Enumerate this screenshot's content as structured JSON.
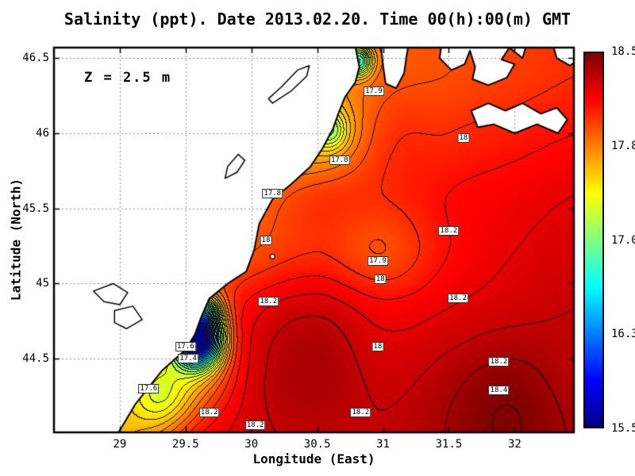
{
  "title": "Salinity (ppt). Date 2013.02.20. Time 00(h):00(m) GMT",
  "annotation": "Z = 2.5 m",
  "axes": {
    "x": {
      "label": "Longitude (East)",
      "range": [
        28.5,
        32.45
      ],
      "ticks": [
        {
          "v": 29,
          "label": "29"
        },
        {
          "v": 29.5,
          "label": "29.5"
        },
        {
          "v": 30,
          "label": "30"
        },
        {
          "v": 30.5,
          "label": "30.5"
        },
        {
          "v": 31,
          "label": "31"
        },
        {
          "v": 31.5,
          "label": "31.5"
        },
        {
          "v": 32,
          "label": "32"
        }
      ]
    },
    "y": {
      "label": "Latitude (North)",
      "range": [
        44.01,
        46.57
      ],
      "ticks": [
        {
          "v": 44.5,
          "label": "44.5"
        },
        {
          "v": 45,
          "label": "45"
        },
        {
          "v": 45.5,
          "label": "45.5"
        },
        {
          "v": 46,
          "label": "46"
        },
        {
          "v": 46.5,
          "label": "46.5"
        }
      ]
    }
  },
  "colorbar": {
    "min": 15.5,
    "max": 18.5,
    "tick_labels": [
      "18.5",
      "17.8",
      "17.0",
      "16.3",
      "15.5"
    ],
    "stops": [
      {
        "t": 0,
        "color": "#000083"
      },
      {
        "t": 0.125,
        "color": "#0000ff"
      },
      {
        "t": 0.375,
        "color": "#00ffff"
      },
      {
        "t": 0.625,
        "color": "#ffff00"
      },
      {
        "t": 0.875,
        "color": "#ff0000"
      },
      {
        "t": 1,
        "color": "#800000"
      }
    ]
  },
  "chart_data": {
    "type": "heatmap",
    "variable": "Salinity",
    "units": "ppt",
    "date": "2013.02.20",
    "time": "00(h):00(m) GMT",
    "depth": "Z = 2.5 m",
    "value_range": [
      15.5,
      18.5
    ],
    "contour_interval": 0.1,
    "grid": {
      "lon": [
        28.5,
        29.0,
        29.5,
        30.0,
        30.5,
        31.0,
        31.5,
        32.0,
        32.5
      ],
      "lat": [
        44.0,
        44.4,
        44.8,
        45.2,
        45.6,
        46.0,
        46.4,
        46.8
      ],
      "values": [
        [
          null,
          17.6,
          18.05,
          18.25,
          18.3,
          18.3,
          18.35,
          18.4,
          18.35
        ],
        [
          null,
          null,
          17.6,
          18.2,
          18.3,
          18.25,
          18.3,
          18.35,
          18.3
        ],
        [
          null,
          null,
          null,
          18.15,
          18.25,
          18.15,
          18.2,
          18.25,
          18.3
        ],
        [
          null,
          null,
          null,
          17.9,
          18.0,
          17.9,
          18.1,
          18.2,
          18.25
        ],
        [
          null,
          null,
          null,
          17.8,
          17.95,
          18.0,
          18.1,
          18.15,
          18.2
        ],
        [
          null,
          null,
          null,
          null,
          17.5,
          17.95,
          18.0,
          18.05,
          18.1
        ],
        [
          null,
          null,
          null,
          null,
          null,
          17.85,
          17.9,
          17.95,
          18.0
        ],
        [
          null,
          null,
          null,
          null,
          null,
          17.85,
          17.9,
          17.95,
          18.0
        ]
      ]
    },
    "anomalies": [
      {
        "lon": 29.6,
        "lat": 44.62,
        "amp": -2.3,
        "r": 0.12
      },
      {
        "lon": 29.66,
        "lat": 44.8,
        "amp": -0.8,
        "r": 0.09
      },
      {
        "lon": 29.32,
        "lat": 44.22,
        "amp": -0.4,
        "r": 0.16
      },
      {
        "lon": 30.6,
        "lat": 46.02,
        "amp": -0.5,
        "r": 0.09
      },
      {
        "lon": 30.82,
        "lat": 46.48,
        "amp": -1.0,
        "r": 0.07
      },
      {
        "lon": 31.9,
        "lat": 44.15,
        "amp": 0.12,
        "r": 0.35
      },
      {
        "lon": 30.45,
        "lat": 44.45,
        "amp": 0.08,
        "r": 0.3
      }
    ],
    "contour_labels": [
      {
        "text": "17.9",
        "lon": 30.93,
        "lat": 46.28
      },
      {
        "text": "18",
        "lon": 31.61,
        "lat": 45.97
      },
      {
        "text": "17.8",
        "lon": 30.67,
        "lat": 45.82
      },
      {
        "text": "17.8",
        "lon": 30.16,
        "lat": 45.6
      },
      {
        "text": "18",
        "lon": 30.11,
        "lat": 45.29
      },
      {
        "text": "18.2",
        "lon": 31.5,
        "lat": 45.35
      },
      {
        "text": "17.9",
        "lon": 30.96,
        "lat": 45.15
      },
      {
        "text": "18",
        "lon": 30.98,
        "lat": 45.03
      },
      {
        "text": "18.2",
        "lon": 31.57,
        "lat": 44.9
      },
      {
        "text": "18.2",
        "lon": 30.13,
        "lat": 44.88
      },
      {
        "text": "18",
        "lon": 30.96,
        "lat": 44.58
      },
      {
        "text": "17.6",
        "lon": 29.5,
        "lat": 44.58
      },
      {
        "text": "17.4",
        "lon": 29.52,
        "lat": 44.5
      },
      {
        "text": "17.6",
        "lon": 29.22,
        "lat": 44.3
      },
      {
        "text": "18.2",
        "lon": 31.88,
        "lat": 44.48
      },
      {
        "text": "18.4",
        "lon": 31.88,
        "lat": 44.29
      },
      {
        "text": "18.2",
        "lon": 29.68,
        "lat": 44.14
      },
      {
        "text": "18.2",
        "lon": 30.03,
        "lat": 44.06
      },
      {
        "text": "18.2",
        "lon": 30.83,
        "lat": 44.14
      }
    ],
    "land_polygons": [
      [
        [
          28.4,
          46.62
        ],
        [
          28.4,
          43.95
        ],
        [
          28.95,
          43.95
        ],
        [
          29.12,
          44.2
        ],
        [
          29.32,
          44.42
        ],
        [
          29.5,
          44.56
        ],
        [
          29.57,
          44.66
        ],
        [
          29.62,
          44.78
        ],
        [
          29.68,
          44.9
        ],
        [
          29.82,
          45.0
        ],
        [
          29.96,
          45.08
        ],
        [
          30.02,
          45.22
        ],
        [
          30.06,
          45.4
        ],
        [
          30.16,
          45.56
        ],
        [
          30.3,
          45.66
        ],
        [
          30.45,
          45.78
        ],
        [
          30.54,
          45.9
        ],
        [
          30.62,
          46.03
        ],
        [
          30.66,
          46.13
        ],
        [
          30.71,
          46.24
        ],
        [
          30.79,
          46.34
        ],
        [
          30.82,
          46.44
        ],
        [
          30.78,
          46.62
        ]
      ],
      [
        [
          30.98,
          46.62
        ],
        [
          31.0,
          46.45
        ],
        [
          31.02,
          46.33
        ],
        [
          31.1,
          46.3
        ],
        [
          31.16,
          46.4
        ],
        [
          31.18,
          46.52
        ],
        [
          31.2,
          46.62
        ]
      ],
      [
        [
          31.45,
          46.62
        ],
        [
          31.43,
          46.5
        ],
        [
          31.52,
          46.42
        ],
        [
          31.62,
          46.46
        ],
        [
          31.66,
          46.55
        ],
        [
          31.7,
          46.44
        ],
        [
          31.68,
          46.36
        ],
        [
          31.8,
          46.32
        ],
        [
          31.94,
          46.37
        ],
        [
          32.0,
          46.46
        ],
        [
          31.9,
          46.49
        ],
        [
          31.96,
          46.57
        ],
        [
          32.06,
          46.5
        ],
        [
          32.1,
          46.62
        ]
      ],
      [
        [
          31.67,
          46.15
        ],
        [
          31.8,
          46.2
        ],
        [
          31.93,
          46.15
        ],
        [
          32.06,
          46.2
        ],
        [
          32.2,
          46.13
        ],
        [
          32.32,
          46.17
        ],
        [
          32.4,
          46.09
        ],
        [
          32.33,
          46.0
        ],
        [
          32.17,
          46.06
        ],
        [
          32.0,
          46.0
        ],
        [
          31.84,
          46.06
        ],
        [
          31.72,
          46.04
        ]
      ],
      [
        [
          32.28,
          46.62
        ],
        [
          32.32,
          46.5
        ],
        [
          32.42,
          46.45
        ],
        [
          32.5,
          46.5
        ],
        [
          32.5,
          46.62
        ]
      ]
    ],
    "lakes": [
      [
        [
          30.16,
          46.2
        ],
        [
          30.3,
          46.28
        ],
        [
          30.42,
          46.38
        ],
        [
          30.44,
          46.45
        ],
        [
          30.35,
          46.42
        ],
        [
          30.23,
          46.31
        ],
        [
          30.13,
          46.23
        ]
      ],
      [
        [
          29.8,
          45.7
        ],
        [
          29.89,
          45.74
        ],
        [
          29.95,
          45.82
        ],
        [
          29.9,
          45.86
        ],
        [
          29.82,
          45.78
        ]
      ],
      [
        [
          28.8,
          44.95
        ],
        [
          28.95,
          45.0
        ],
        [
          29.06,
          44.94
        ],
        [
          29.0,
          44.86
        ],
        [
          28.88,
          44.88
        ]
      ],
      [
        [
          28.96,
          44.82
        ],
        [
          29.1,
          44.85
        ],
        [
          29.17,
          44.76
        ],
        [
          29.05,
          44.7
        ],
        [
          28.96,
          44.74
        ]
      ]
    ],
    "islands": [
      {
        "lon": 30.16,
        "lat": 45.18
      }
    ]
  }
}
